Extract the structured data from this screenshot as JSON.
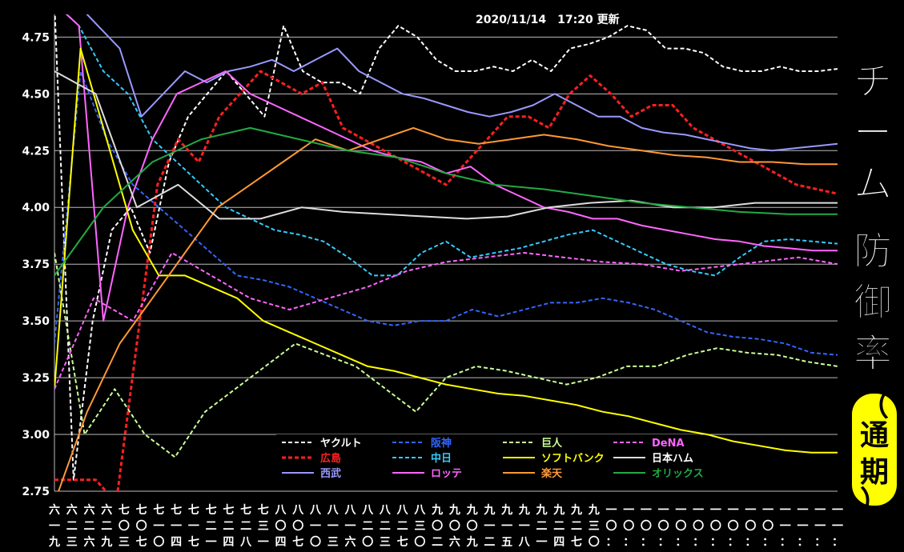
{
  "header": {
    "updated": "2020/11/14　17:20 更新"
  },
  "side": {
    "title": [
      "チ",
      "ー",
      "ム",
      "",
      "防",
      "御",
      "率"
    ],
    "subtitle": [
      "（",
      "通",
      "期",
      "）"
    ]
  },
  "chart_data": {
    "type": "line",
    "title": "チーム 防御率（通期）",
    "subtitle": "2020/11/14 17:20 更新",
    "xlabel": "",
    "ylabel": "",
    "ylim": [
      2.75,
      4.85
    ],
    "yticks": [
      "2.75",
      "3.00",
      "3.25",
      "3.50",
      "3.75",
      "4.00",
      "4.25",
      "4.50",
      "4.75"
    ],
    "grid": true,
    "legend_position": "bottom-center",
    "x_tick_labels": [
      [
        "六",
        "一",
        "九"
      ],
      [
        "六",
        "二",
        "三"
      ],
      [
        "六",
        "二",
        "六"
      ],
      [
        "六",
        "二",
        "九"
      ],
      [
        "七",
        "〇",
        "三"
      ],
      [
        "七",
        "〇",
        "七"
      ],
      [
        "七",
        "一",
        "〇"
      ],
      [
        "七",
        "一",
        "四"
      ],
      [
        "七",
        "一",
        "七"
      ],
      [
        "七",
        "二",
        "一"
      ],
      [
        "七",
        "二",
        "四"
      ],
      [
        "七",
        "二",
        "八"
      ],
      [
        "七",
        "三",
        "一"
      ],
      [
        "八",
        "〇",
        "四"
      ],
      [
        "八",
        "〇",
        "七"
      ],
      [
        "八",
        "一",
        "〇"
      ],
      [
        "八",
        "一",
        "三"
      ],
      [
        "八",
        "一",
        "六"
      ],
      [
        "八",
        "二",
        "〇"
      ],
      [
        "八",
        "二",
        "三"
      ],
      [
        "八",
        "二",
        "七"
      ],
      [
        "八",
        "三",
        "〇"
      ],
      [
        "九",
        "〇",
        "二"
      ],
      [
        "九",
        "〇",
        "六"
      ],
      [
        "九",
        "〇",
        "九"
      ],
      [
        "九",
        "一",
        "二"
      ],
      [
        "九",
        "一",
        "五"
      ],
      [
        "九",
        "一",
        "八"
      ],
      [
        "九",
        "二",
        "一"
      ],
      [
        "九",
        "二",
        "四"
      ],
      [
        "九",
        "二",
        "七"
      ],
      [
        "九",
        "三",
        "〇"
      ],
      [
        "一",
        "〇",
        "："
      ],
      [
        "一",
        "〇",
        "："
      ],
      [
        "一",
        "〇",
        "："
      ],
      [
        "一",
        "〇",
        "："
      ],
      [
        "一",
        "〇",
        "："
      ],
      [
        "一",
        "〇",
        "："
      ],
      [
        "一",
        "〇",
        "："
      ],
      [
        "一",
        "〇",
        "："
      ],
      [
        "一",
        "〇",
        "："
      ],
      [
        "一",
        "〇",
        "："
      ],
      [
        "一",
        "一",
        "："
      ],
      [
        "一",
        "一",
        "："
      ],
      [
        "一",
        "一",
        "："
      ],
      [
        "一",
        "一",
        "："
      ]
    ],
    "series": [
      {
        "name": "ヤクルト",
        "color": "#ffffff",
        "dash": true,
        "values": [
          4.9,
          2.8,
          3.5,
          3.9,
          4.0,
          3.8,
          4.2,
          4.4,
          4.5,
          4.6,
          4.5,
          4.4,
          4.8,
          4.6,
          4.55,
          4.55,
          4.5,
          4.7,
          4.8,
          4.75,
          4.65,
          4.6,
          4.6,
          4.62,
          4.6,
          4.65,
          4.6,
          4.7,
          4.72,
          4.75,
          4.8,
          4.78,
          4.7,
          4.7,
          4.68,
          4.62,
          4.6,
          4.6,
          4.62,
          4.6,
          4.6,
          4.61
        ]
      },
      {
        "name": "広島",
        "color": "#ff2020",
        "dash": true,
        "values": [
          2.8,
          2.8,
          2.8,
          2.7,
          3.4,
          4.1,
          4.3,
          4.2,
          4.4,
          4.5,
          4.6,
          4.55,
          4.5,
          4.55,
          4.35,
          4.3,
          4.25,
          4.2,
          4.15,
          4.1,
          4.2,
          4.3,
          4.4,
          4.4,
          4.35,
          4.5,
          4.58,
          4.5,
          4.4,
          4.45,
          4.45,
          4.35,
          4.3,
          4.25,
          4.2,
          4.15,
          4.1,
          4.08,
          4.06
        ]
      },
      {
        "name": "西武",
        "color": "#9999ff",
        "dash": false,
        "values": [
          4.9,
          4.9,
          4.8,
          4.7,
          4.4,
          4.5,
          4.6,
          4.55,
          4.6,
          4.62,
          4.65,
          4.6,
          4.65,
          4.7,
          4.6,
          4.55,
          4.5,
          4.48,
          4.45,
          4.42,
          4.4,
          4.42,
          4.45,
          4.5,
          4.45,
          4.4,
          4.4,
          4.35,
          4.33,
          4.32,
          4.3,
          4.28,
          4.26,
          4.25,
          4.26,
          4.27,
          4.28
        ]
      },
      {
        "name": "阪神",
        "color": "#3366ff",
        "dash": true,
        "values": [
          3.4,
          4.6,
          4.3,
          4.1,
          4.0,
          3.9,
          3.8,
          3.7,
          3.68,
          3.65,
          3.6,
          3.55,
          3.5,
          3.48,
          3.5,
          3.5,
          3.55,
          3.52,
          3.55,
          3.58,
          3.58,
          3.6,
          3.58,
          3.55,
          3.5,
          3.45,
          3.43,
          3.42,
          3.4,
          3.36,
          3.35
        ]
      },
      {
        "name": "中日",
        "color": "#33ccff",
        "dash": true,
        "values": [
          4.9,
          4.8,
          4.6,
          4.5,
          4.3,
          4.2,
          4.1,
          4.0,
          3.95,
          3.9,
          3.88,
          3.85,
          3.78,
          3.7,
          3.7,
          3.8,
          3.85,
          3.78,
          3.8,
          3.82,
          3.85,
          3.88,
          3.9,
          3.85,
          3.8,
          3.75,
          3.72,
          3.7,
          3.78,
          3.85,
          3.86,
          3.85,
          3.84
        ]
      },
      {
        "name": "ロッテ",
        "color": "#ff66ff",
        "dash": false,
        "values": [
          4.9,
          4.8,
          3.5,
          4.0,
          4.3,
          4.5,
          4.55,
          4.6,
          4.5,
          4.45,
          4.4,
          4.35,
          4.3,
          4.25,
          4.22,
          4.2,
          4.15,
          4.18,
          4.1,
          4.05,
          4.0,
          3.98,
          3.95,
          3.95,
          3.92,
          3.9,
          3.88,
          3.86,
          3.85,
          3.83,
          3.82,
          3.81,
          3.81
        ]
      },
      {
        "name": "巨人",
        "color": "#ccff99",
        "dash": true,
        "values": [
          3.8,
          3.0,
          3.2,
          3.0,
          2.9,
          3.1,
          3.2,
          3.3,
          3.4,
          3.35,
          3.3,
          3.2,
          3.1,
          3.25,
          3.3,
          3.28,
          3.25,
          3.22,
          3.25,
          3.3,
          3.3,
          3.35,
          3.38,
          3.36,
          3.35,
          3.32,
          3.3
        ]
      },
      {
        "name": "ソフトバンク",
        "color": "#ffff00",
        "dash": false,
        "values": [
          3.2,
          4.7,
          4.3,
          3.9,
          3.7,
          3.7,
          3.65,
          3.6,
          3.5,
          3.45,
          3.4,
          3.35,
          3.3,
          3.28,
          3.25,
          3.22,
          3.2,
          3.18,
          3.17,
          3.15,
          3.13,
          3.1,
          3.08,
          3.05,
          3.02,
          3.0,
          2.97,
          2.95,
          2.93,
          2.92,
          2.92
        ]
      },
      {
        "name": "楽天",
        "color": "#ff9933",
        "dash": false,
        "values": [
          2.7,
          3.1,
          3.4,
          3.6,
          3.8,
          4.0,
          4.1,
          4.2,
          4.3,
          4.25,
          4.3,
          4.35,
          4.3,
          4.28,
          4.3,
          4.32,
          4.3,
          4.27,
          4.25,
          4.23,
          4.22,
          4.2,
          4.2,
          4.19,
          4.19
        ]
      },
      {
        "name": "DeNA",
        "color": "#ff66ff",
        "dash": true,
        "values": [
          3.2,
          3.6,
          3.5,
          3.8,
          3.7,
          3.6,
          3.55,
          3.6,
          3.65,
          3.72,
          3.76,
          3.78,
          3.8,
          3.78,
          3.76,
          3.75,
          3.72,
          3.74,
          3.76,
          3.78,
          3.75
        ]
      },
      {
        "name": "日本ハム",
        "color": "#dddddd",
        "dash": false,
        "values": [
          4.6,
          4.5,
          4.0,
          4.1,
          3.95,
          3.95,
          4.0,
          3.98,
          3.97,
          3.96,
          3.95,
          3.96,
          4.0,
          4.02,
          4.03,
          4.0,
          4.0,
          4.02,
          4.02,
          4.02
        ]
      },
      {
        "name": "オリックス",
        "color": "#22aa44",
        "dash": false,
        "values": [
          3.7,
          4.0,
          4.2,
          4.3,
          4.35,
          4.3,
          4.25,
          4.22,
          4.15,
          4.1,
          4.08,
          4.05,
          4.02,
          4.0,
          3.98,
          3.97,
          3.97
        ]
      }
    ]
  }
}
